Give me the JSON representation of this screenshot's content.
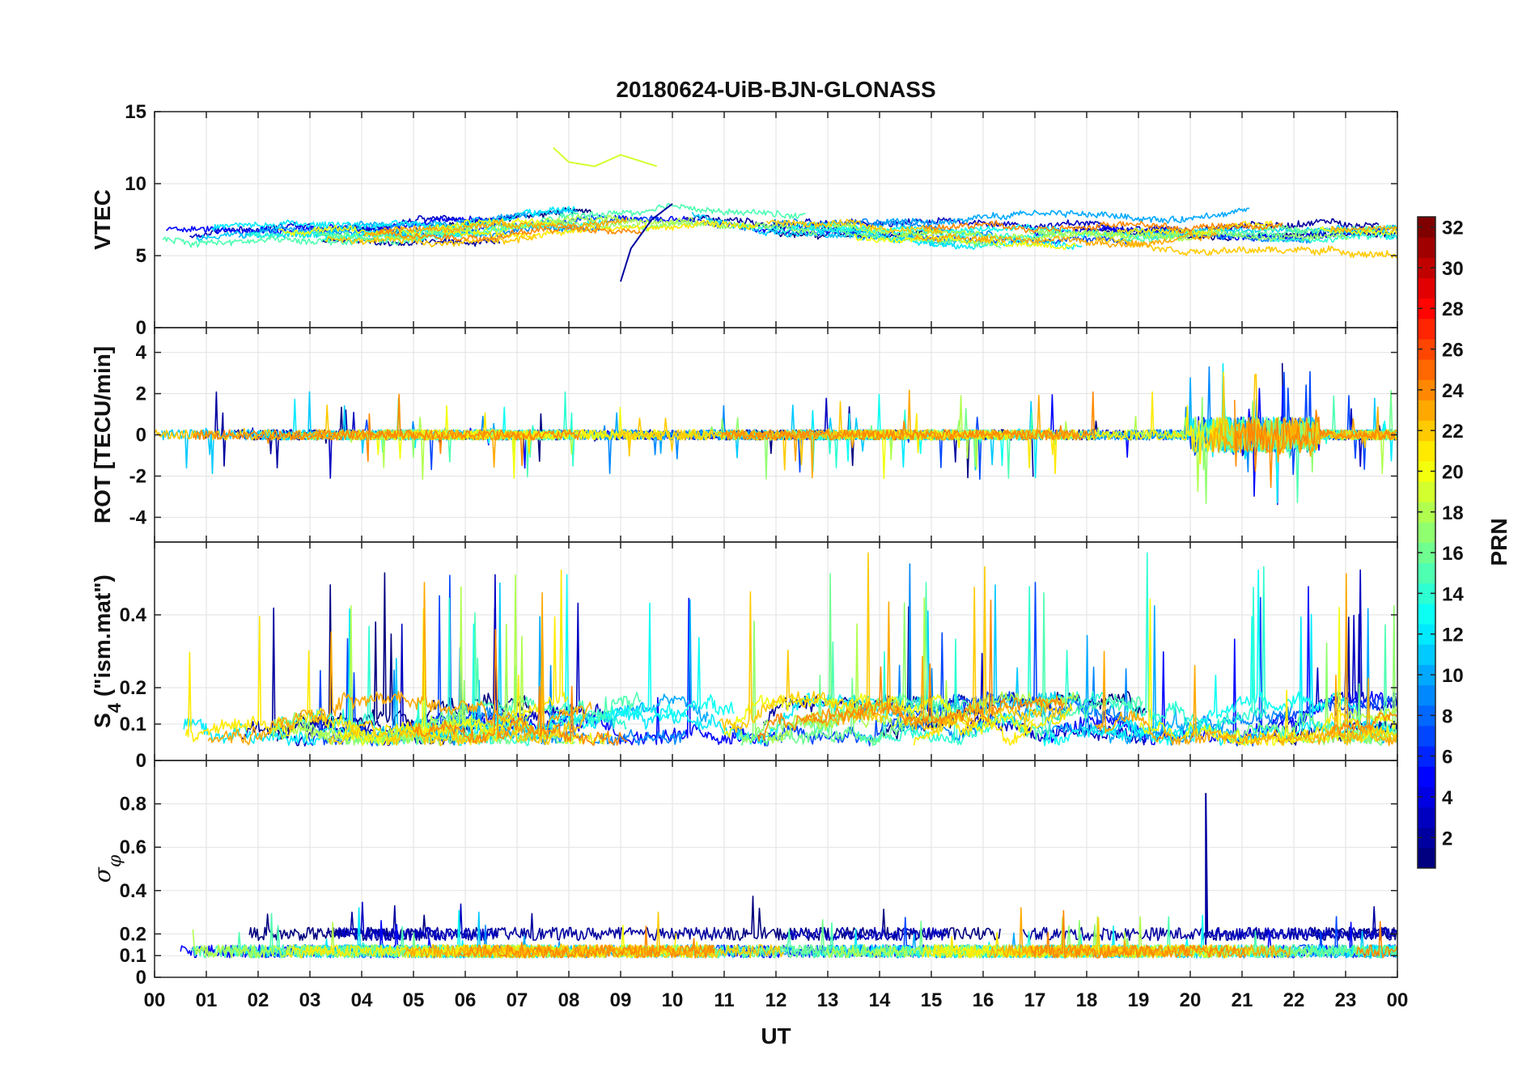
{
  "chart_data": {
    "type": "line",
    "title": "20180624-UiB-BJN-GLONASS",
    "xlabel": "UT",
    "x_tick_labels": [
      "00",
      "01",
      "02",
      "03",
      "04",
      "05",
      "06",
      "07",
      "08",
      "09",
      "10",
      "11",
      "12",
      "13",
      "14",
      "15",
      "16",
      "17",
      "18",
      "19",
      "20",
      "21",
      "22",
      "23",
      "00"
    ],
    "xlim": [
      0,
      24
    ],
    "grid": true,
    "colorbar": {
      "label": "PRN",
      "range": [
        1,
        32
      ],
      "tick_labels": [
        "2",
        "4",
        "6",
        "8",
        "10",
        "12",
        "14",
        "16",
        "18",
        "20",
        "22",
        "24",
        "26",
        "28",
        "30",
        "32"
      ],
      "tick_values": [
        2,
        4,
        6,
        8,
        10,
        12,
        14,
        16,
        18,
        20,
        22,
        24,
        26,
        28,
        30,
        32
      ],
      "colormap": "jet",
      "visible_prns": [
        1,
        2,
        3,
        5,
        7,
        9,
        10,
        11,
        12,
        13,
        14,
        15,
        16,
        17,
        18,
        20,
        21,
        22,
        23,
        24
      ]
    },
    "panels": [
      {
        "ylabel": "VTEC",
        "ylim": [
          0,
          15
        ],
        "y_tick_labels": [
          "0",
          "5",
          "10",
          "15"
        ],
        "y_tick_values": [
          0,
          5,
          10,
          15
        ],
        "baseline": 6.5,
        "noise": 0.4,
        "spike_level": 0,
        "note_series": [
          {
            "prn": 19,
            "x": [
              7.7,
              8.0,
              8.5,
              9.0,
              9.7
            ],
            "y": [
              12.5,
              11.5,
              11.2,
              12.0,
              11.2
            ]
          },
          {
            "prn": 2,
            "x": [
              9.0,
              9.2,
              9.6,
              10.0
            ],
            "y": [
              3.2,
              5.5,
              7.5,
              8.6
            ]
          }
        ]
      },
      {
        "ylabel": "ROT [TECU/min]",
        "ylim": [
          -5.2,
          5.2
        ],
        "y_tick_labels": [
          "-4",
          "-2",
          "0",
          "2",
          "4"
        ],
        "y_tick_values": [
          -4,
          -2,
          0,
          2,
          4
        ],
        "baseline": 0,
        "noise": 0.25,
        "spike_level": 2.2,
        "storm_window": [
          20.0,
          22.5
        ],
        "storm_amplitude": 3.5
      },
      {
        "ylabel": "S4 (\"ism.mat\")",
        "ylabel_main": "S",
        "ylabel_sub": "4",
        "ylabel_rest": " (\"ism.mat\")",
        "ylim": [
          0,
          0.6
        ],
        "y_tick_labels": [
          "0",
          "0.1",
          "0.2",
          "0.4"
        ],
        "y_tick_values": [
          0,
          0.1,
          0.2,
          0.4
        ],
        "baseline": 0.06,
        "noise": 0.03,
        "spike_level": 0.45
      },
      {
        "ylabel": "σφ",
        "ylabel_main": "σ",
        "ylabel_sub": "φ",
        "ylim": [
          0,
          1.0
        ],
        "y_tick_labels": [
          "0",
          "0.1",
          "0.2",
          "0.4",
          "0.6",
          "0.8"
        ],
        "y_tick_values": [
          0,
          0.1,
          0.2,
          0.4,
          0.6,
          0.8
        ],
        "baseline": 0.12,
        "noise": 0.03,
        "spike_level": 0.3,
        "peak": {
          "x": 20.3,
          "y": 0.85
        }
      }
    ]
  }
}
